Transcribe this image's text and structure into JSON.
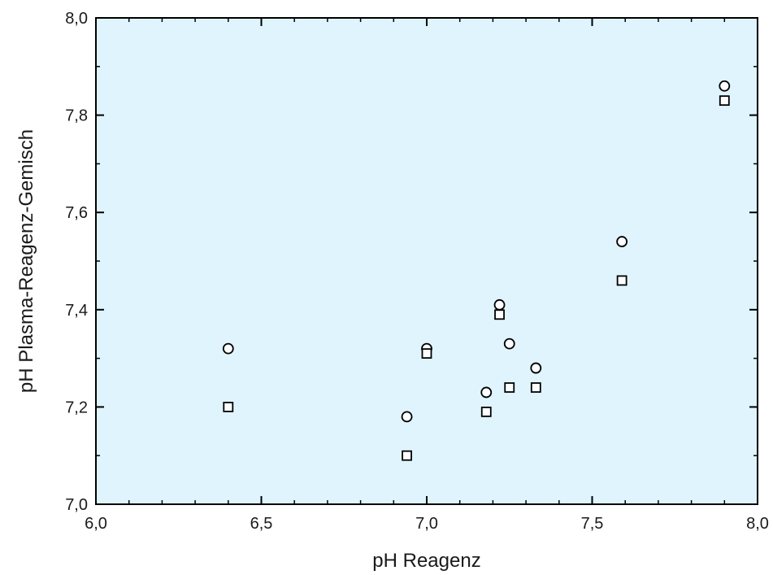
{
  "chart_data": {
    "type": "scatter",
    "title": "",
    "xlabel": "pH Reagenz",
    "ylabel": "pH Plasma-Reagenz-Gemisch",
    "xlim": [
      6.0,
      8.0
    ],
    "ylim": [
      7.0,
      8.0
    ],
    "x_ticks": [
      6.0,
      6.5,
      7.0,
      7.5,
      8.0
    ],
    "x_tick_labels": [
      "6,0",
      "6,5",
      "7,0",
      "7,5",
      "8,0"
    ],
    "y_ticks": [
      7.0,
      7.2,
      7.4,
      7.6,
      7.8,
      8.0
    ],
    "y_tick_labels": [
      "7,0",
      "7,2",
      "7,4",
      "7,6",
      "7,8",
      "8,0"
    ],
    "grid": false,
    "legend": "none",
    "plot_background": "#dff4fc",
    "series": [
      {
        "marker": "circle",
        "points": [
          {
            "x": 6.4,
            "y": 7.32
          },
          {
            "x": 6.94,
            "y": 7.18
          },
          {
            "x": 7.0,
            "y": 7.32
          },
          {
            "x": 7.18,
            "y": 7.23
          },
          {
            "x": 7.22,
            "y": 7.41
          },
          {
            "x": 7.25,
            "y": 7.33
          },
          {
            "x": 7.33,
            "y": 7.28
          },
          {
            "x": 7.59,
            "y": 7.54
          },
          {
            "x": 7.9,
            "y": 7.86
          }
        ]
      },
      {
        "marker": "square",
        "points": [
          {
            "x": 6.4,
            "y": 7.2
          },
          {
            "x": 6.94,
            "y": 7.1
          },
          {
            "x": 7.0,
            "y": 7.31
          },
          {
            "x": 7.18,
            "y": 7.19
          },
          {
            "x": 7.22,
            "y": 7.39
          },
          {
            "x": 7.25,
            "y": 7.24
          },
          {
            "x": 7.33,
            "y": 7.24
          },
          {
            "x": 7.59,
            "y": 7.46
          },
          {
            "x": 7.9,
            "y": 7.83
          }
        ]
      }
    ]
  }
}
